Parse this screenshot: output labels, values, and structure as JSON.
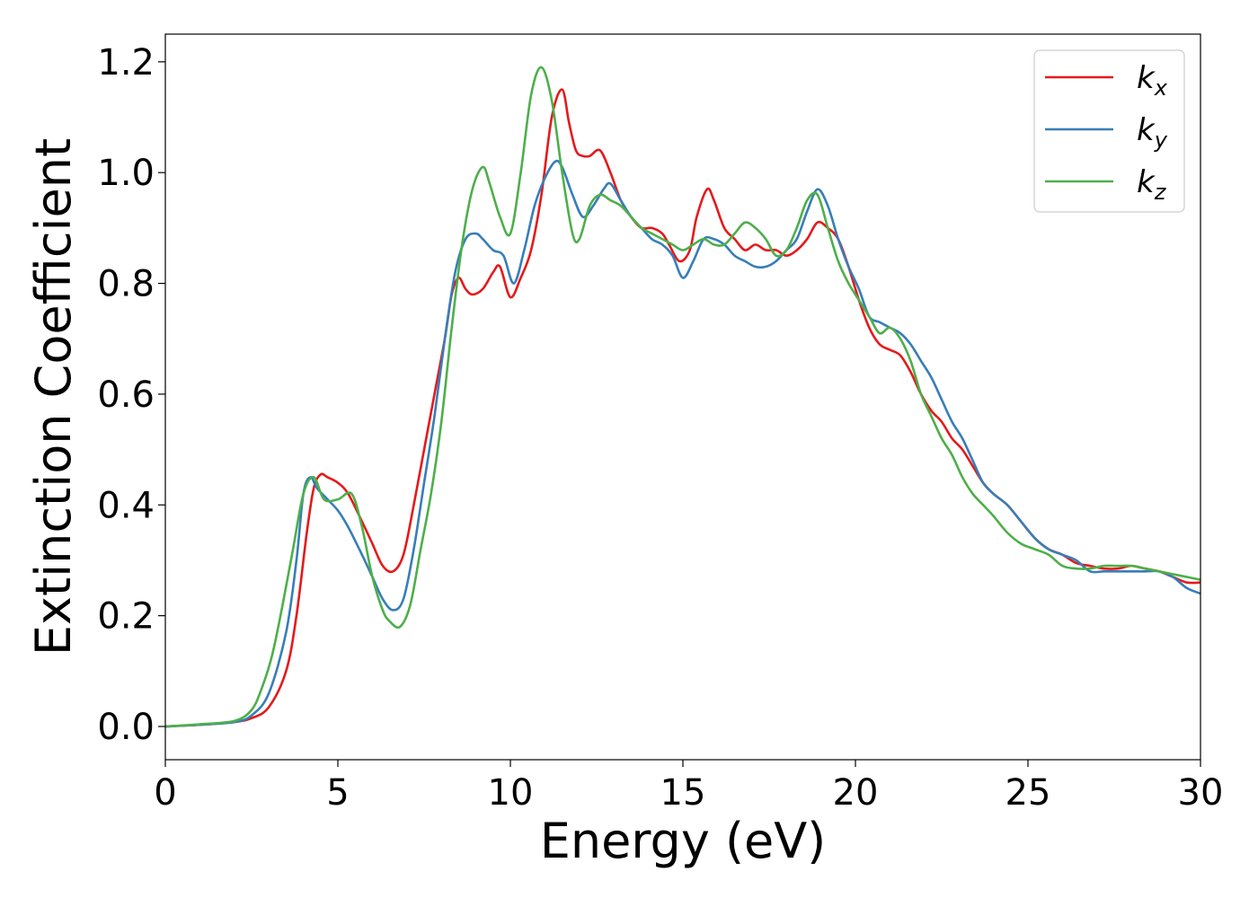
{
  "chart_data": {
    "type": "line",
    "title": "",
    "xlabel": "Energy (eV)",
    "ylabel": "Extinction Coefficient",
    "xlim": [
      0,
      30
    ],
    "ylim": [
      -0.06,
      1.25
    ],
    "xticks": [
      0,
      5,
      10,
      15,
      20,
      25,
      30
    ],
    "xtick_labels": [
      "0",
      "5",
      "10",
      "15",
      "20",
      "25",
      "30"
    ],
    "yticks": [
      0.0,
      0.2,
      0.4,
      0.6,
      0.8,
      1.0,
      1.2
    ],
    "ytick_labels": [
      "0.0",
      "0.2",
      "0.4",
      "0.6",
      "0.8",
      "1.0",
      "1.2"
    ],
    "grid": false,
    "legend_position": "top-right",
    "series": [
      {
        "name": "k_x",
        "label_main": "k",
        "label_sub": "x",
        "color": "#e41a1c",
        "x": [
          0,
          1,
          2,
          2.5,
          3,
          3.5,
          3.8,
          4.1,
          4.3,
          4.5,
          4.7,
          5.0,
          5.3,
          5.7,
          6.0,
          6.3,
          6.6,
          6.9,
          7.2,
          7.5,
          7.8,
          8.1,
          8.3,
          8.5,
          8.7,
          8.9,
          9.2,
          9.5,
          9.7,
          10.0,
          10.3,
          10.6,
          10.9,
          11.2,
          11.5,
          11.7,
          11.9,
          12.1,
          12.3,
          12.6,
          12.9,
          13.2,
          13.5,
          13.8,
          14.1,
          14.4,
          14.6,
          14.9,
          15.2,
          15.4,
          15.7,
          15.9,
          16.2,
          16.5,
          16.8,
          17.1,
          17.4,
          17.7,
          18.0,
          18.3,
          18.6,
          18.9,
          19.2,
          19.5,
          19.8,
          20.1,
          20.4,
          20.7,
          21.0,
          21.3,
          21.6,
          21.9,
          22.2,
          22.5,
          22.8,
          23.1,
          23.4,
          23.7,
          24.0,
          24.4,
          24.8,
          25.2,
          25.6,
          26.0,
          26.4,
          26.8,
          27.2,
          27.6,
          28.0,
          28.4,
          28.8,
          29.2,
          29.6,
          30.0
        ],
        "values": [
          0,
          0.003,
          0.008,
          0.015,
          0.035,
          0.1,
          0.2,
          0.35,
          0.43,
          0.455,
          0.45,
          0.44,
          0.42,
          0.37,
          0.33,
          0.29,
          0.28,
          0.31,
          0.4,
          0.5,
          0.6,
          0.7,
          0.78,
          0.81,
          0.79,
          0.78,
          0.79,
          0.82,
          0.83,
          0.775,
          0.81,
          0.86,
          0.96,
          1.1,
          1.15,
          1.09,
          1.04,
          1.03,
          1.03,
          1.04,
          1.0,
          0.95,
          0.92,
          0.9,
          0.9,
          0.89,
          0.87,
          0.84,
          0.86,
          0.92,
          0.97,
          0.95,
          0.9,
          0.88,
          0.86,
          0.87,
          0.86,
          0.86,
          0.85,
          0.86,
          0.88,
          0.91,
          0.9,
          0.88,
          0.83,
          0.77,
          0.72,
          0.69,
          0.68,
          0.67,
          0.64,
          0.6,
          0.57,
          0.55,
          0.52,
          0.5,
          0.47,
          0.44,
          0.42,
          0.4,
          0.37,
          0.34,
          0.32,
          0.31,
          0.295,
          0.29,
          0.285,
          0.285,
          0.29,
          0.285,
          0.28,
          0.27,
          0.26,
          0.26
        ]
      },
      {
        "name": "k_y",
        "label_main": "k",
        "label_sub": "y",
        "color": "#377eb8",
        "x": [
          0,
          1,
          2,
          2.5,
          3,
          3.5,
          3.8,
          4.0,
          4.2,
          4.4,
          4.7,
          5.0,
          5.3,
          5.7,
          6.0,
          6.3,
          6.6,
          6.9,
          7.2,
          7.5,
          7.8,
          8.1,
          8.4,
          8.7,
          9.0,
          9.2,
          9.5,
          9.8,
          10.1,
          10.4,
          10.7,
          11.0,
          11.3,
          11.5,
          11.8,
          12.1,
          12.4,
          12.7,
          12.9,
          13.2,
          13.5,
          13.8,
          14.1,
          14.4,
          14.7,
          15.0,
          15.3,
          15.6,
          15.9,
          16.2,
          16.5,
          16.8,
          17.1,
          17.4,
          17.7,
          18.0,
          18.3,
          18.6,
          18.9,
          19.2,
          19.5,
          19.8,
          20.1,
          20.4,
          20.7,
          21.0,
          21.3,
          21.6,
          21.9,
          22.2,
          22.5,
          22.8,
          23.1,
          23.4,
          23.7,
          24.0,
          24.4,
          24.8,
          25.2,
          25.6,
          26.0,
          26.4,
          26.8,
          27.2,
          27.6,
          28.0,
          28.4,
          28.8,
          29.2,
          29.6,
          30.0
        ],
        "values": [
          0,
          0.003,
          0.008,
          0.02,
          0.06,
          0.17,
          0.3,
          0.42,
          0.45,
          0.43,
          0.41,
          0.39,
          0.36,
          0.31,
          0.27,
          0.23,
          0.21,
          0.23,
          0.32,
          0.44,
          0.56,
          0.7,
          0.82,
          0.88,
          0.89,
          0.88,
          0.86,
          0.85,
          0.8,
          0.86,
          0.94,
          0.99,
          1.02,
          1.01,
          0.96,
          0.92,
          0.94,
          0.97,
          0.98,
          0.95,
          0.92,
          0.9,
          0.88,
          0.87,
          0.85,
          0.81,
          0.84,
          0.88,
          0.88,
          0.87,
          0.85,
          0.84,
          0.83,
          0.83,
          0.84,
          0.86,
          0.88,
          0.93,
          0.97,
          0.94,
          0.88,
          0.83,
          0.79,
          0.74,
          0.73,
          0.72,
          0.71,
          0.69,
          0.66,
          0.63,
          0.59,
          0.55,
          0.52,
          0.48,
          0.44,
          0.42,
          0.4,
          0.37,
          0.34,
          0.32,
          0.31,
          0.3,
          0.28,
          0.28,
          0.28,
          0.28,
          0.28,
          0.28,
          0.27,
          0.25,
          0.24
        ]
      },
      {
        "name": "k_z",
        "label_main": "k",
        "label_sub": "z",
        "color": "#4daf4a",
        "x": [
          0,
          1,
          2,
          2.5,
          2.8,
          3.1,
          3.4,
          3.7,
          4.0,
          4.3,
          4.6,
          5.0,
          5.4,
          5.7,
          6.0,
          6.3,
          6.5,
          6.8,
          7.1,
          7.4,
          7.7,
          8.0,
          8.3,
          8.6,
          8.9,
          9.2,
          9.4,
          9.7,
          10.0,
          10.3,
          10.6,
          10.9,
          11.2,
          11.5,
          11.8,
          12.0,
          12.3,
          12.6,
          12.9,
          13.2,
          13.5,
          13.8,
          14.1,
          14.4,
          14.7,
          15.0,
          15.3,
          15.6,
          15.9,
          16.2,
          16.5,
          16.8,
          17.1,
          17.4,
          17.7,
          18.0,
          18.3,
          18.6,
          18.9,
          19.2,
          19.5,
          19.8,
          20.1,
          20.4,
          20.7,
          21.0,
          21.3,
          21.6,
          21.9,
          22.2,
          22.5,
          22.8,
          23.1,
          23.4,
          23.7,
          24.0,
          24.4,
          24.8,
          25.2,
          25.6,
          26.0,
          26.4,
          26.8,
          27.2,
          27.6,
          28.0,
          28.4,
          28.8,
          29.2,
          29.6,
          30.0
        ],
        "values": [
          0,
          0.004,
          0.01,
          0.03,
          0.07,
          0.13,
          0.22,
          0.32,
          0.42,
          0.45,
          0.41,
          0.41,
          0.42,
          0.36,
          0.27,
          0.21,
          0.19,
          0.18,
          0.22,
          0.32,
          0.42,
          0.55,
          0.72,
          0.87,
          0.97,
          1.01,
          0.98,
          0.92,
          0.89,
          1.0,
          1.14,
          1.19,
          1.13,
          1.0,
          0.89,
          0.88,
          0.94,
          0.96,
          0.95,
          0.94,
          0.92,
          0.9,
          0.89,
          0.88,
          0.87,
          0.86,
          0.87,
          0.88,
          0.87,
          0.87,
          0.89,
          0.91,
          0.9,
          0.88,
          0.85,
          0.86,
          0.9,
          0.95,
          0.96,
          0.9,
          0.84,
          0.8,
          0.77,
          0.74,
          0.71,
          0.72,
          0.7,
          0.66,
          0.6,
          0.56,
          0.52,
          0.49,
          0.45,
          0.42,
          0.4,
          0.38,
          0.35,
          0.33,
          0.32,
          0.31,
          0.29,
          0.285,
          0.285,
          0.29,
          0.29,
          0.29,
          0.285,
          0.28,
          0.275,
          0.27,
          0.265
        ]
      }
    ]
  }
}
